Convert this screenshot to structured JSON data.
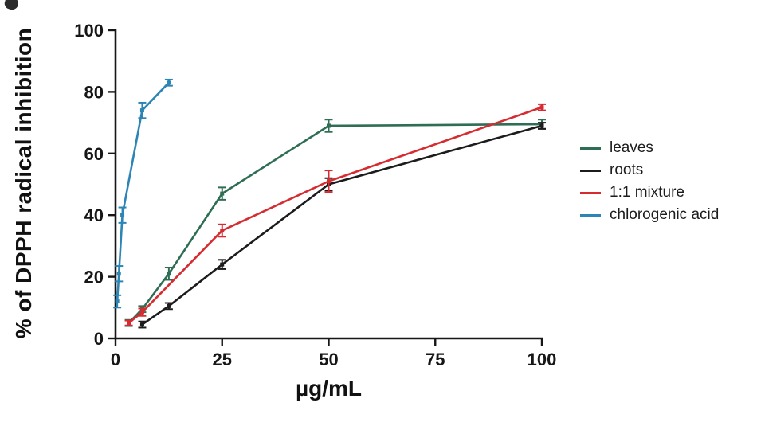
{
  "figure": {
    "title": "",
    "background": "#ffffff",
    "axis_color": "#161616"
  },
  "chart_data": {
    "type": "line",
    "title": "",
    "xlabel": "µg/mL",
    "ylabel": "% of DPPH radical inhibition",
    "xlim": [
      0,
      100
    ],
    "ylim": [
      0,
      100
    ],
    "xticks": [
      0,
      25,
      50,
      75,
      100
    ],
    "yticks": [
      0,
      20,
      40,
      60,
      80,
      100
    ],
    "grid": false,
    "error_bars": true,
    "legend_position": "right",
    "series": [
      {
        "name": "leaves",
        "color": "#2e6e54",
        "x": [
          3.1,
          6.25,
          12.5,
          25,
          50,
          100
        ],
        "y": [
          5,
          9.5,
          21,
          47,
          69,
          69.5
        ],
        "err": [
          1,
          1,
          2,
          2,
          2,
          1.5
        ]
      },
      {
        "name": "roots",
        "color": "#1c1c1c",
        "x": [
          6.25,
          12.5,
          25,
          50,
          100
        ],
        "y": [
          4.5,
          10.5,
          24,
          50,
          69
        ],
        "err": [
          1,
          1,
          1.5,
          2,
          1
        ]
      },
      {
        "name": "1:1 mixture",
        "color": "#d62b30",
        "x": [
          3.1,
          6.25,
          25,
          50,
          100
        ],
        "y": [
          5,
          8.5,
          35,
          51,
          75
        ],
        "err": [
          0.8,
          1.2,
          2,
          3.5,
          1
        ]
      },
      {
        "name": "chlorogenic acid",
        "color": "#2c85b5",
        "x": [
          0.4,
          0.8,
          1.6,
          6.25,
          12.5
        ],
        "y": [
          12,
          21,
          40,
          74,
          83
        ],
        "err": [
          2,
          2.5,
          2.5,
          2.5,
          1
        ]
      }
    ]
  }
}
